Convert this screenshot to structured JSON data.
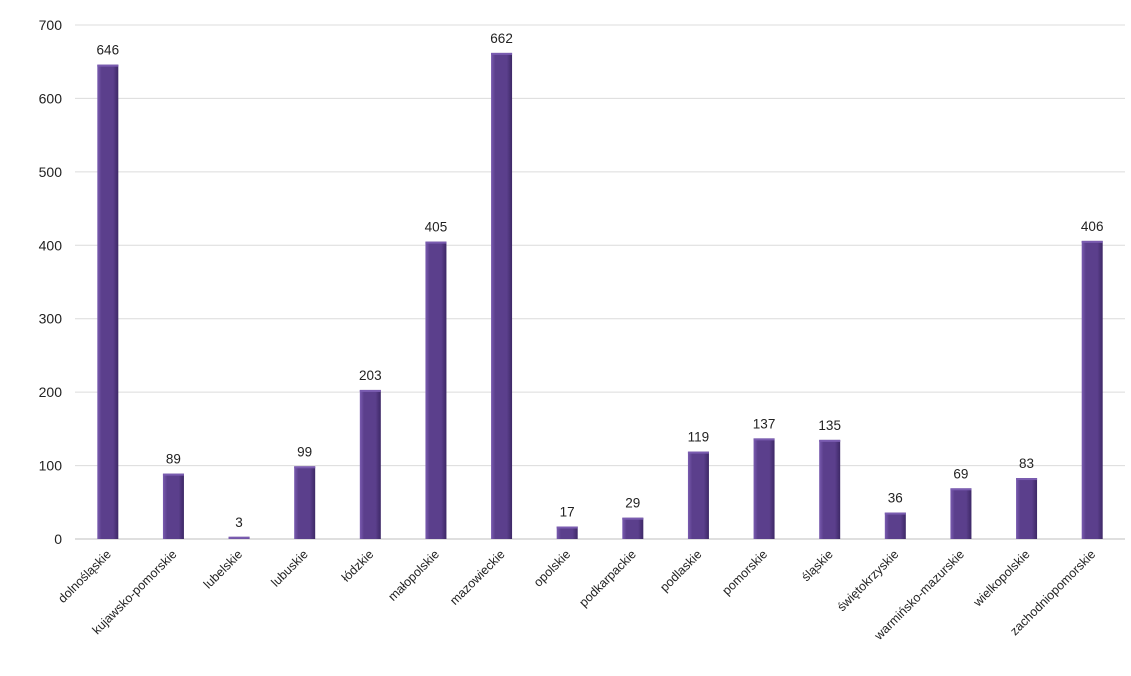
{
  "chart_data": {
    "type": "bar",
    "categories": [
      "dolnośląskie",
      "kujawsko-pomorskie",
      "lubelskie",
      "lubuskie",
      "łódzkie",
      "małopolskie",
      "mazowieckie",
      "opolskie",
      "podkarpackie",
      "podlaskie",
      "pomorskie",
      "śląskie",
      "świętokrzyskie",
      "warmińsko-mazurskie",
      "wielkopolskie",
      "zachodniopomorskie"
    ],
    "values": [
      646,
      89,
      3,
      99,
      203,
      405,
      662,
      17,
      29,
      119,
      137,
      135,
      36,
      69,
      83,
      406
    ],
    "data_labels": [
      "646",
      "89",
      "3",
      "99",
      "203",
      "405",
      "662",
      "17",
      "29",
      "119",
      "137",
      "135",
      "36",
      "69",
      "83",
      "406"
    ],
    "title": "",
    "xlabel": "",
    "ylabel": "",
    "ylim": [
      0,
      700
    ],
    "yticks": [
      0,
      100,
      200,
      300,
      400,
      500,
      600,
      700
    ],
    "ytick_labels": [
      "0",
      "100",
      "200",
      "300",
      "400",
      "500",
      "600",
      "700"
    ],
    "grid": true,
    "legend": "none",
    "bar_color": "#5b3f8c",
    "bar_highlight": "#7a5cb0",
    "bar_shadow": "#3d2866"
  }
}
